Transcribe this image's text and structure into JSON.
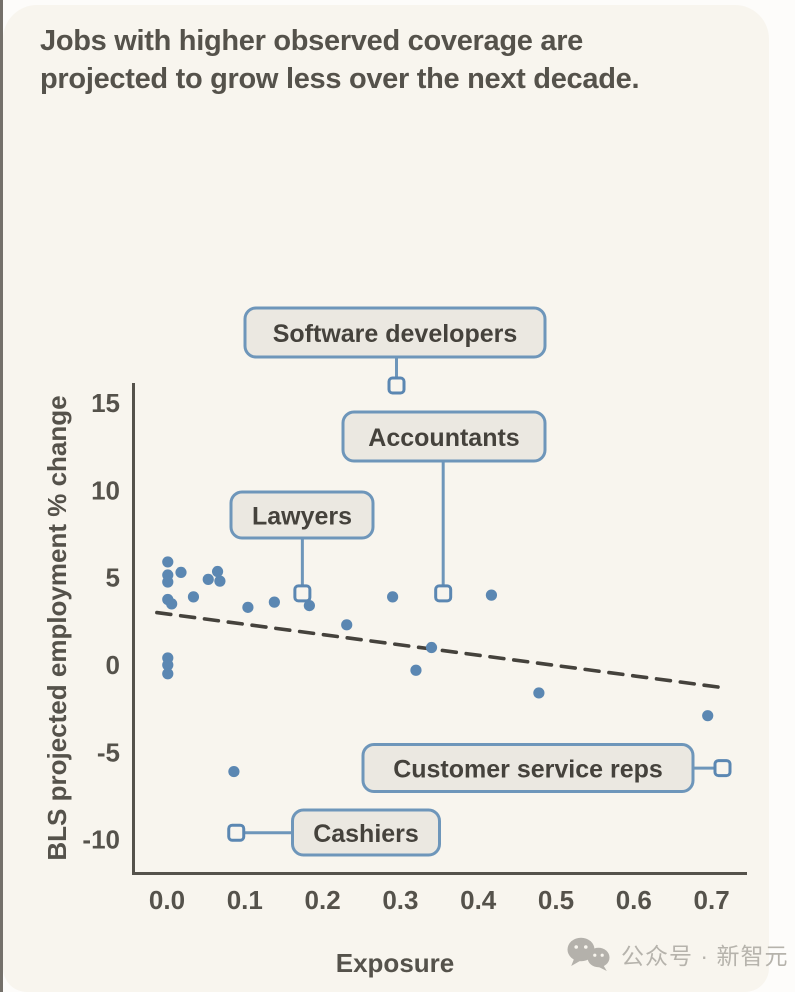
{
  "page": {
    "title_line1": "Jobs with higher observed coverage are",
    "title_line2": "projected to grow less over the next decade.",
    "watermark": {
      "icon": "wechat-icon",
      "text": "公众号 · 新智元"
    }
  },
  "colors": {
    "card_bg": "#f8f5ee",
    "title_text": "#55524b",
    "axis": "#55524b",
    "point": "#5b87b2",
    "callout_border": "#6e96ba",
    "callout_bg": "#ebe8e1",
    "callout_text": "#45423c",
    "trend": "#45423c",
    "watermark_text": "#b6b3ac"
  },
  "chart_data": {
    "type": "scatter",
    "title": "Jobs with higher observed coverage are projected to grow less over the next decade.",
    "xlabel": "Exposure",
    "ylabel": "BLS projected employment % change",
    "x_ticks": [
      "0.0",
      "0.1",
      "0.2",
      "0.3",
      "0.4",
      "0.5",
      "0.6",
      "0.7"
    ],
    "y_ticks": [
      15,
      10,
      5,
      0,
      -5,
      -10
    ],
    "xlim": [
      -0.045,
      0.745
    ],
    "ylim": [
      -11.9,
      16.2
    ],
    "grid": false,
    "legend": false,
    "points": [
      [
        0.001,
        5.9
      ],
      [
        0.001,
        5.15
      ],
      [
        0.001,
        4.75
      ],
      [
        0.018,
        5.3
      ],
      [
        0.001,
        3.75
      ],
      [
        0.006,
        3.5
      ],
      [
        0.034,
        3.9
      ],
      [
        0.053,
        4.9
      ],
      [
        0.065,
        5.35
      ],
      [
        0.068,
        4.8
      ],
      [
        0.104,
        3.3
      ],
      [
        0.138,
        3.6
      ],
      [
        0.183,
        3.4
      ],
      [
        0.231,
        2.3
      ],
      [
        0.29,
        3.9
      ],
      [
        0.32,
        -0.3
      ],
      [
        0.34,
        1.0
      ],
      [
        0.417,
        4.0
      ],
      [
        0.478,
        -1.6
      ],
      [
        0.695,
        -2.9
      ],
      [
        0.086,
        -6.1
      ],
      [
        0.001,
        0.4
      ],
      [
        0.001,
        0.0
      ],
      [
        0.001,
        -0.5
      ]
    ],
    "labeled_points": [
      {
        "label": "Software developers",
        "x": 0.295,
        "y": 16.0
      },
      {
        "label": "Accountants",
        "x": 0.355,
        "y": 4.1
      },
      {
        "label": "Lawyers",
        "x": 0.174,
        "y": 4.1
      },
      {
        "label": "Customer service reps",
        "x": 0.714,
        "y": -5.9
      },
      {
        "label": "Cashiers",
        "x": 0.089,
        "y": -9.6
      }
    ],
    "trend_line": {
      "style": "dashed",
      "x1": -0.013,
      "y1": 3.0,
      "x2": 0.715,
      "y2": -1.3
    }
  }
}
